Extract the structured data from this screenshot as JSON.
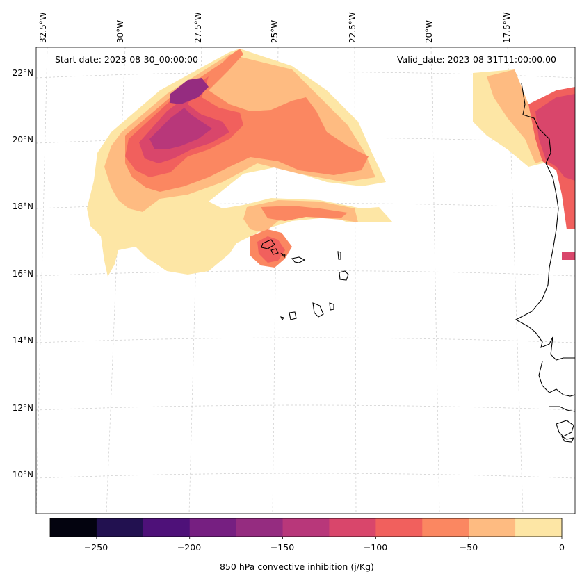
{
  "header": {
    "start_date": "Start date: 2023-08-30_00:00:00",
    "valid_date": "Valid_date: 2023-08-31T11:00:00.00"
  },
  "lon_labels": [
    "32.5°W",
    "30°W",
    "27.5°W",
    "25°W",
    "22.5°W",
    "20°W",
    "17.5°W"
  ],
  "lat_labels": [
    "22°N",
    "20°N",
    "18°N",
    "16°N",
    "14°N",
    "12°N",
    "10°N"
  ],
  "colorbar": {
    "label": "850 hPa convective inhibition (j/Kg)",
    "ticks": [
      "−250",
      "−200",
      "−150",
      "−100",
      "−50",
      "0"
    ],
    "bounds": [
      -275,
      -250,
      -225,
      -200,
      -175,
      -150,
      -125,
      -100,
      -75,
      -50,
      -25,
      0
    ],
    "colors": [
      "#03030f",
      "#221150",
      "#4e1179",
      "#761f81",
      "#952c80",
      "#b8377a",
      "#d9466b",
      "#f1605d",
      "#fb8761",
      "#febb81",
      "#fde6a5"
    ]
  },
  "legend": {
    "placement": "bottom"
  }
}
